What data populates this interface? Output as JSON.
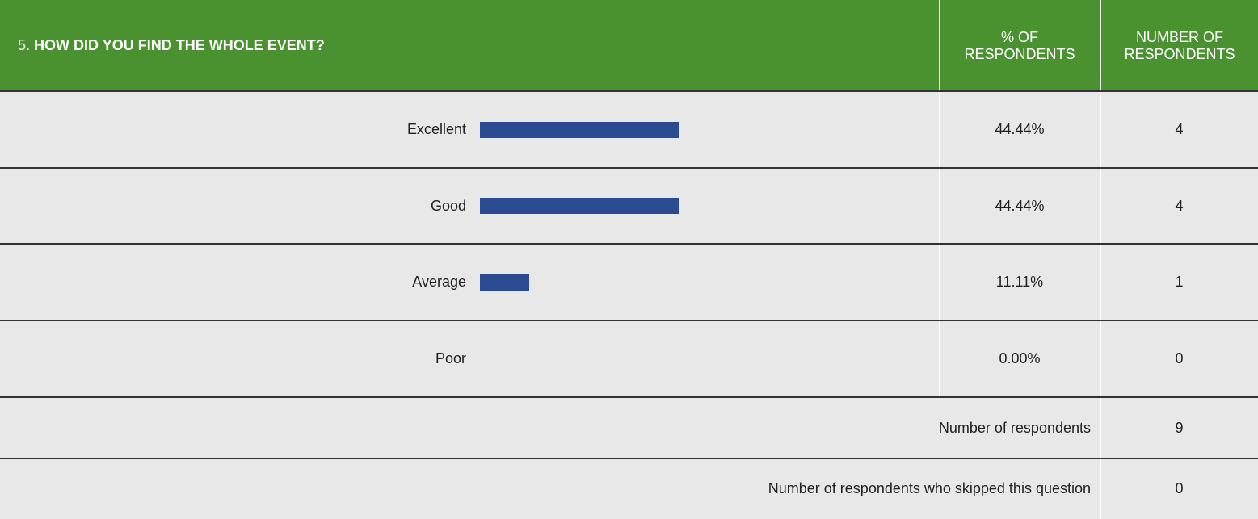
{
  "header": {
    "number": "5.",
    "question": "HOW DID YOU FIND THE WHOLE EVENT?",
    "percent_heading": "% OF RESPONDENTS",
    "count_heading": "NUMBER OF RESPONDENTS"
  },
  "rows": [
    {
      "label": "Excellent",
      "percent": 44.44,
      "percent_label": "44.44%",
      "count": 4
    },
    {
      "label": "Good",
      "percent": 44.44,
      "percent_label": "44.44%",
      "count": 4
    },
    {
      "label": "Average",
      "percent": 11.11,
      "percent_label": "11.11%",
      "count": 1
    },
    {
      "label": "Poor",
      "percent": 0,
      "percent_label": "0.00%",
      "count": 0
    }
  ],
  "summary": [
    {
      "label": "Number of respondents",
      "value": 9
    },
    {
      "label": "Number of respondents who skipped this question",
      "value": 0
    }
  ],
  "bar_color": "#2b4c93"
}
